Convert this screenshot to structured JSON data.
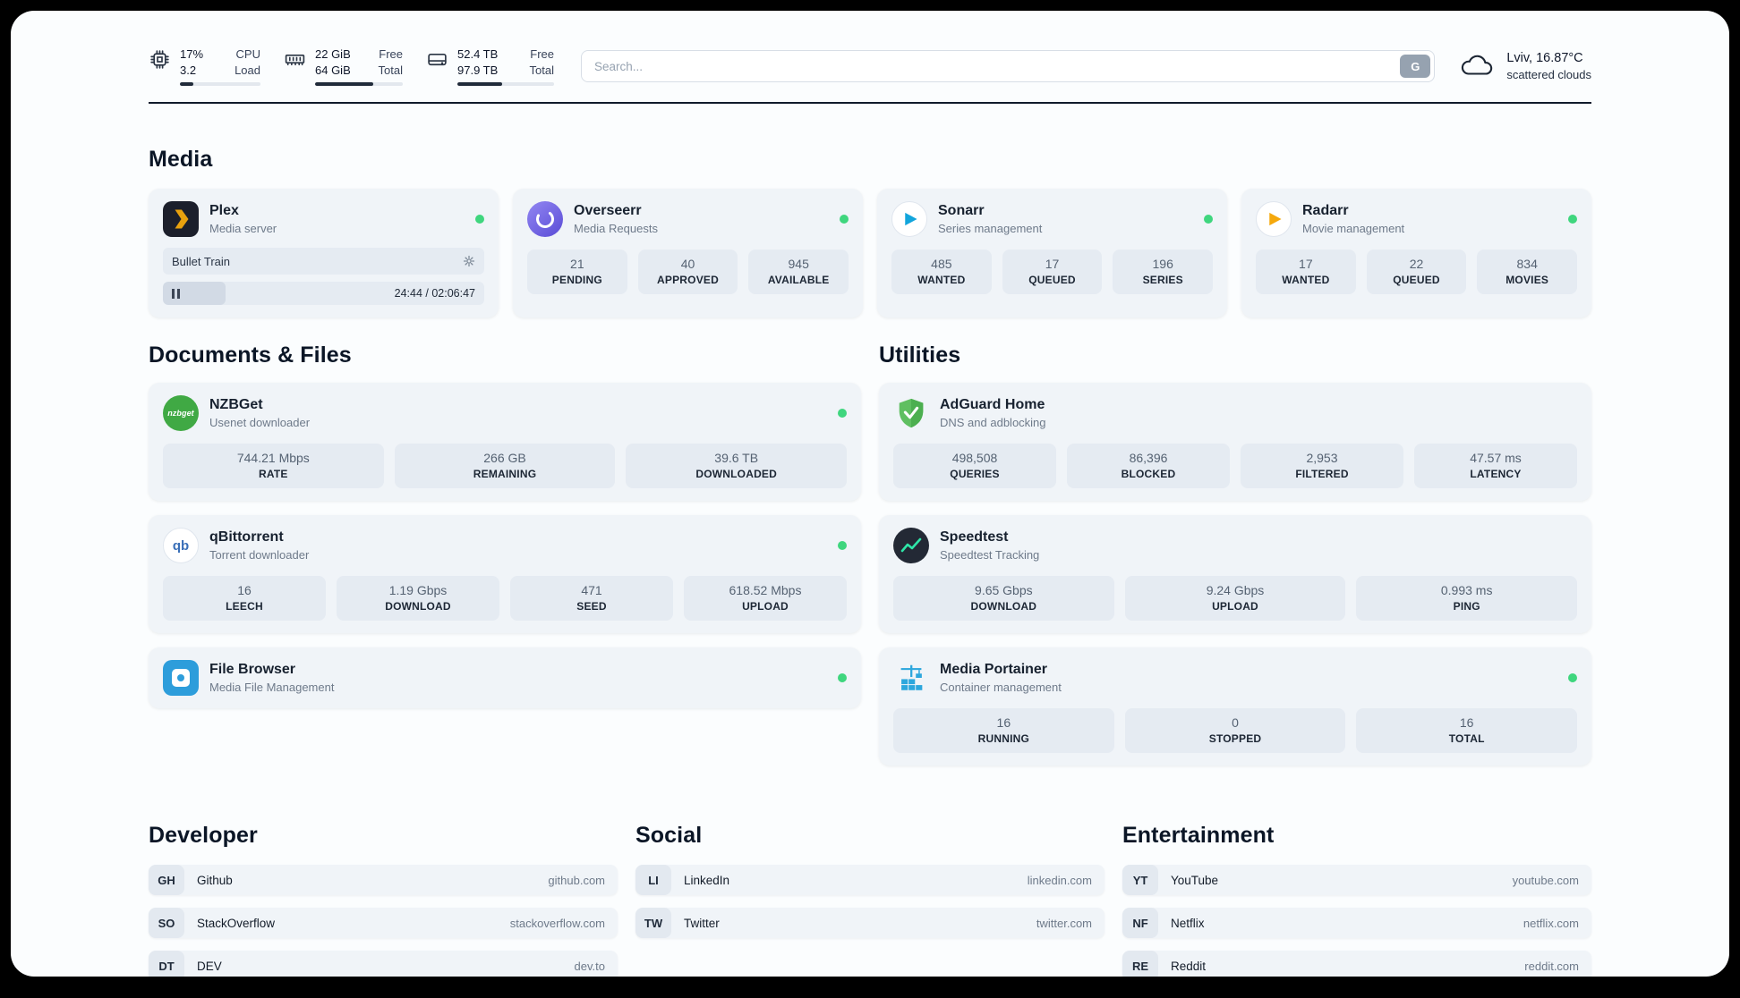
{
  "header": {
    "resources": [
      {
        "top_value": "17%",
        "bottom_value": "3.2",
        "top_label": "CPU",
        "bottom_label": "Load",
        "bar_percent": 17
      },
      {
        "top_value": "22 GiB",
        "bottom_value": "64 GiB",
        "top_label": "Free",
        "bottom_label": "Total",
        "bar_percent": 66
      },
      {
        "top_value": "52.4 TB",
        "bottom_value": "97.9 TB",
        "top_label": "Free",
        "bottom_label": "Total",
        "bar_percent": 46
      }
    ],
    "search": {
      "placeholder": "Search...",
      "engine_button": "G"
    },
    "weather": {
      "location": "Lviv, 16.87°C",
      "condition": "scattered clouds"
    }
  },
  "sections": {
    "media": {
      "title": "Media",
      "cards": [
        {
          "name": "Plex",
          "subtitle": "Media server",
          "player": {
            "title": "Bullet Train",
            "time": "24:44 / 02:06:47",
            "progress_percent": 19.5
          }
        },
        {
          "name": "Overseerr",
          "subtitle": "Media Requests",
          "stats": [
            {
              "value": "21",
              "label": "PENDING"
            },
            {
              "value": "40",
              "label": "APPROVED"
            },
            {
              "value": "945",
              "label": "AVAILABLE"
            }
          ]
        },
        {
          "name": "Sonarr",
          "subtitle": "Series management",
          "stats": [
            {
              "value": "485",
              "label": "WANTED"
            },
            {
              "value": "17",
              "label": "QUEUED"
            },
            {
              "value": "196",
              "label": "SERIES"
            }
          ]
        },
        {
          "name": "Radarr",
          "subtitle": "Movie management",
          "stats": [
            {
              "value": "17",
              "label": "WANTED"
            },
            {
              "value": "22",
              "label": "QUEUED"
            },
            {
              "value": "834",
              "label": "MOVIES"
            }
          ]
        }
      ]
    },
    "documents": {
      "title": "Documents & Files",
      "cards": [
        {
          "name": "NZBGet",
          "subtitle": "Usenet downloader",
          "icon_text": "nzbget",
          "stats": [
            {
              "value": "744.21 Mbps",
              "label": "RATE"
            },
            {
              "value": "266 GB",
              "label": "REMAINING"
            },
            {
              "value": "39.6 TB",
              "label": "DOWNLOADED"
            }
          ]
        },
        {
          "name": "qBittorrent",
          "subtitle": "Torrent downloader",
          "icon_text": "qb",
          "stats": [
            {
              "value": "16",
              "label": "LEECH"
            },
            {
              "value": "1.19 Gbps",
              "label": "DOWNLOAD"
            },
            {
              "value": "471",
              "label": "SEED"
            },
            {
              "value": "618.52 Mbps",
              "label": "UPLOAD"
            }
          ]
        },
        {
          "name": "File Browser",
          "subtitle": "Media File Management"
        }
      ]
    },
    "utilities": {
      "title": "Utilities",
      "cards": [
        {
          "name": "AdGuard Home",
          "subtitle": "DNS and adblocking",
          "stats": [
            {
              "value": "498,508",
              "label": "QUERIES"
            },
            {
              "value": "86,396",
              "label": "BLOCKED"
            },
            {
              "value": "2,953",
              "label": "FILTERED"
            },
            {
              "value": "47.57 ms",
              "label": "LATENCY"
            }
          ]
        },
        {
          "name": "Speedtest",
          "subtitle": "Speedtest Tracking",
          "stats": [
            {
              "value": "9.65 Gbps",
              "label": "DOWNLOAD"
            },
            {
              "value": "9.24 Gbps",
              "label": "UPLOAD"
            },
            {
              "value": "0.993 ms",
              "label": "PING"
            }
          ]
        },
        {
          "name": "Media Portainer",
          "subtitle": "Container management",
          "stats": [
            {
              "value": "16",
              "label": "RUNNING"
            },
            {
              "value": "0",
              "label": "STOPPED"
            },
            {
              "value": "16",
              "label": "TOTAL"
            }
          ]
        }
      ]
    }
  },
  "bookmarks": [
    {
      "title": "Developer",
      "items": [
        {
          "abbr": "GH",
          "name": "Github",
          "url": "github.com"
        },
        {
          "abbr": "SO",
          "name": "StackOverflow",
          "url": "stackoverflow.com"
        },
        {
          "abbr": "DT",
          "name": "DEV",
          "url": "dev.to"
        }
      ]
    },
    {
      "title": "Social",
      "items": [
        {
          "abbr": "LI",
          "name": "LinkedIn",
          "url": "linkedin.com"
        },
        {
          "abbr": "TW",
          "name": "Twitter",
          "url": "twitter.com"
        }
      ]
    },
    {
      "title": "Entertainment",
      "items": [
        {
          "abbr": "YT",
          "name": "YouTube",
          "url": "youtube.com"
        },
        {
          "abbr": "NF",
          "name": "Netflix",
          "url": "netflix.com"
        },
        {
          "abbr": "RE",
          "name": "Reddit",
          "url": "reddit.com"
        }
      ]
    }
  ],
  "colors": {
    "status_online": "#3fd67e",
    "plex": "#e8a10e",
    "overseerr": "#6c5ce7",
    "sonarr": "#12a5dc",
    "radarr": "#f5a80c",
    "nzbget": "#40a944",
    "qbittorrent": "#3a6fb8",
    "filebrowser": "#2d9ddb",
    "adguard": "#4caf50",
    "speedtest": "#2ee6a8",
    "portainer": "#2da7dd"
  }
}
